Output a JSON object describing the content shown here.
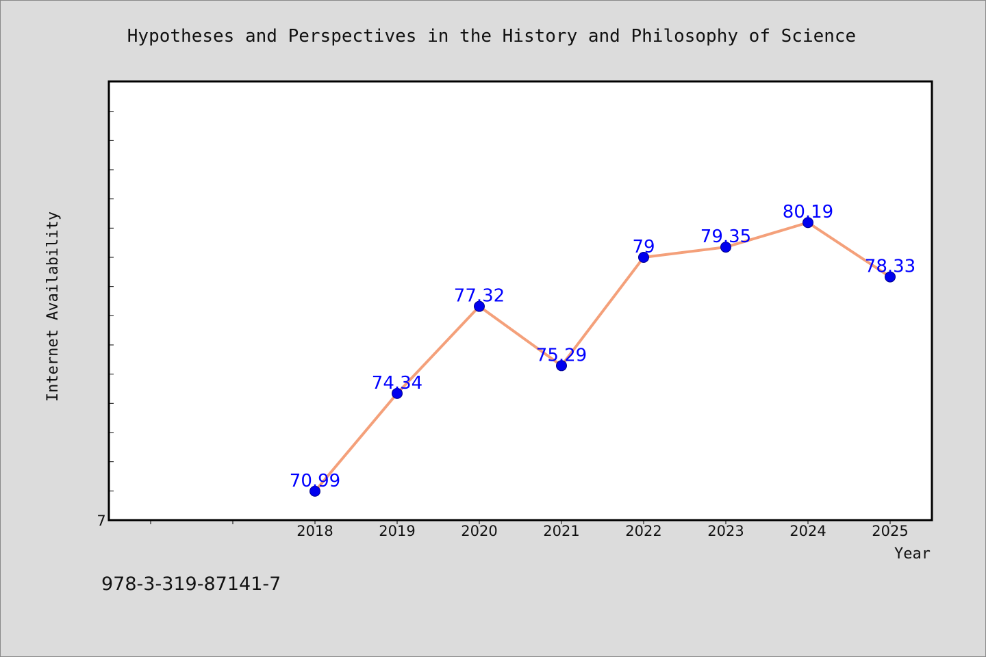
{
  "chart_data": {
    "type": "line",
    "title": "Hypotheses and Perspectives in the History and Philosophy of Science",
    "xlabel": "Year",
    "ylabel": "Internet Availability",
    "categories": [
      "2018",
      "2019",
      "2020",
      "2021",
      "2022",
      "2023",
      "2024",
      "2025"
    ],
    "series": [
      {
        "values": [
          70.99,
          74.34,
          77.32,
          75.29,
          79,
          79.35,
          80.19,
          78.33
        ]
      }
    ],
    "value_labels": [
      "70.99",
      "74.34",
      "77.32",
      "75.29",
      "79",
      "79.35",
      "80.19",
      "78.33"
    ],
    "y_tick_label": "7",
    "ylim": [
      70,
      85
    ],
    "grid": false,
    "line_color": "#f4a07a",
    "marker_color": "#0000ee",
    "label_color": "#0000ff"
  },
  "footer": {
    "isbn": "978-3-319-87141-7"
  }
}
